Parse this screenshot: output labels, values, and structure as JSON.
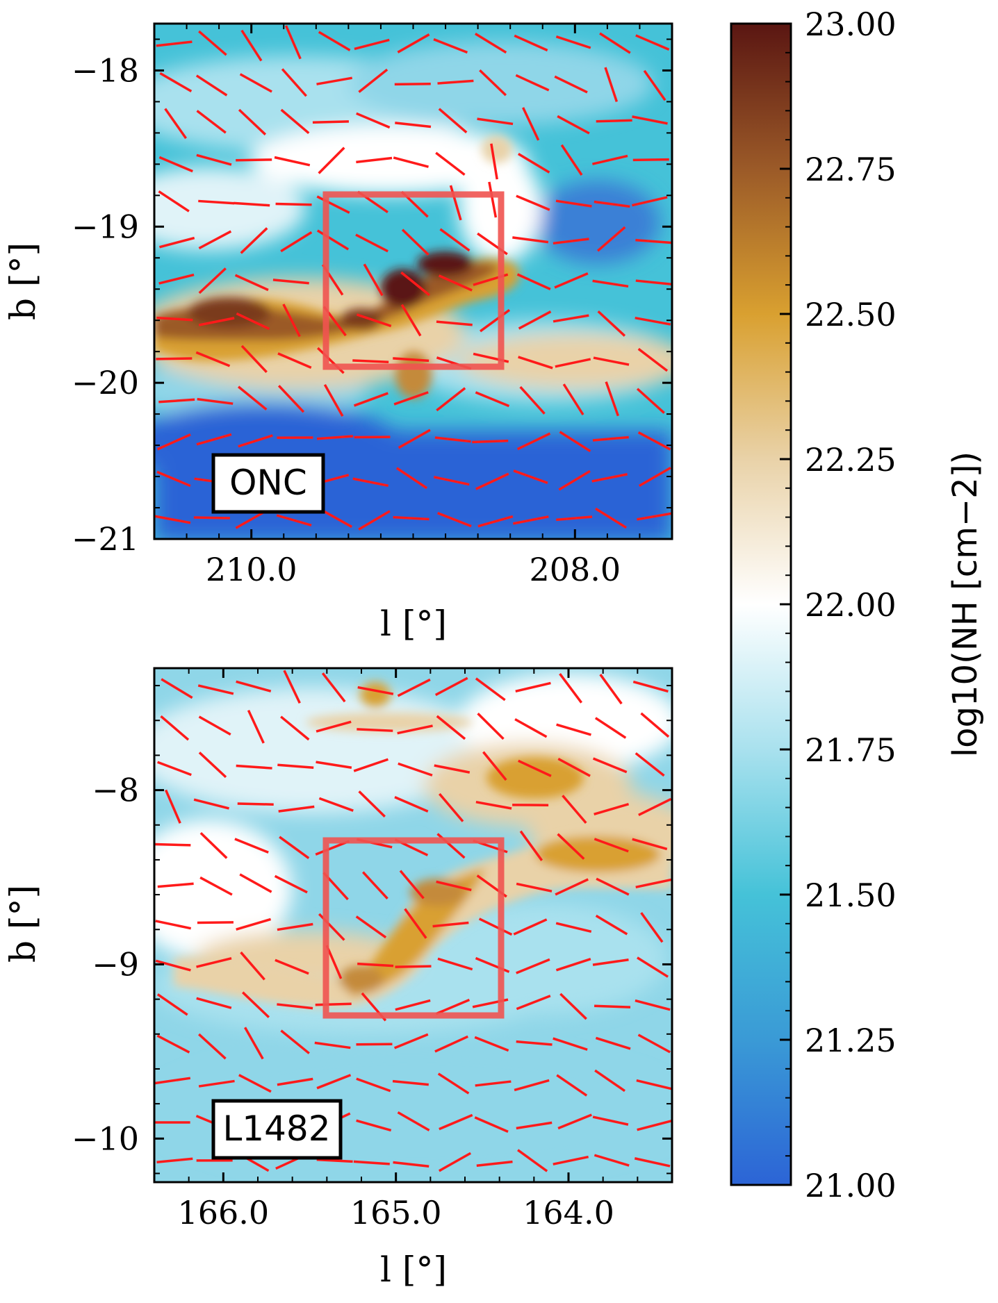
{
  "chart_data": [
    {
      "type": "heatmap",
      "panel": "ONC",
      "region_label": "ONC",
      "xlabel": "l [°]",
      "ylabel": "b [°]",
      "xlim": [
        210.6,
        207.4
      ],
      "ylim": [
        -21.0,
        -17.7
      ],
      "x_ticks": [
        210.0,
        208.0
      ],
      "x_tick_labels": [
        "210.0",
        "208.0"
      ],
      "y_ticks": [
        -18,
        -19,
        -20,
        -21
      ],
      "y_tick_labels": [
        "−18",
        "−19",
        "−20",
        "−21"
      ],
      "highlight_box": {
        "l": [
          209.55,
          208.45
        ],
        "b": [
          -19.9,
          -18.8
        ]
      },
      "vector_color": "#ff1a1a",
      "box_color": "#ef5350",
      "dense_ridge_l": [
        210.6,
        210.1,
        209.8,
        209.4,
        209.0,
        208.6,
        208.1,
        207.5
      ],
      "dense_ridge_b": [
        -19.7,
        -19.6,
        -19.6,
        -19.5,
        -19.35,
        -19.2,
        -19.4,
        -19.8
      ],
      "peak_log10_NH": 23.0
    },
    {
      "type": "heatmap",
      "panel": "L1482",
      "region_label": "L1482",
      "xlabel": "l [°]",
      "ylabel": "b [°]",
      "xlim": [
        166.4,
        163.4
      ],
      "ylim": [
        -10.25,
        -7.3
      ],
      "x_ticks": [
        166.0,
        165.0,
        164.0
      ],
      "x_tick_labels": [
        "166.0",
        "165.0",
        "164.0"
      ],
      "y_ticks": [
        -8,
        -9,
        -10
      ],
      "y_tick_labels": [
        "−8",
        "−9",
        "−10"
      ],
      "highlight_box": {
        "l": [
          165.4,
          164.4
        ],
        "b": [
          -9.25,
          -8.25
        ]
      },
      "vector_color": "#ff1a1a",
      "box_color": "#ef5350",
      "dense_ridge_l": [
        166.1,
        165.5,
        165.1,
        164.8,
        164.4,
        163.9,
        163.4
      ],
      "dense_ridge_b": [
        -9.0,
        -9.15,
        -9.0,
        -8.6,
        -8.3,
        -8.2,
        -8.35
      ],
      "peak_log10_NH": 22.55
    }
  ],
  "colorbar": {
    "label": "log10(NH [cm−2])",
    "vmin": 21.0,
    "vmax": 23.0,
    "tick_labels": [
      "23.00",
      "22.75",
      "22.50",
      "22.25",
      "22.00",
      "21.75",
      "21.50",
      "21.25",
      "21.00"
    ],
    "colors": [
      "#2c64d6",
      "#3a9ad6",
      "#45c2d8",
      "#a9e1ee",
      "#ffffff",
      "#e9d2a8",
      "#d9a030",
      "#9b5a28",
      "#5a1612"
    ]
  }
}
